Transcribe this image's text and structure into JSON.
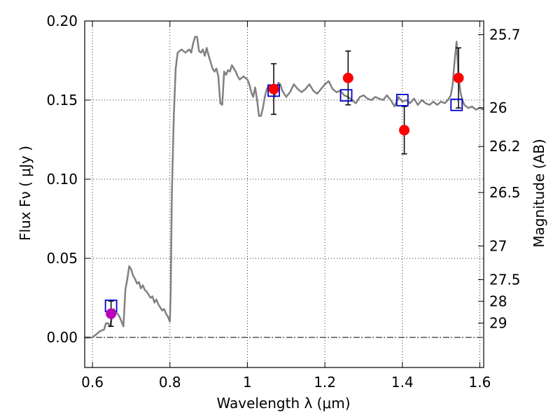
{
  "chart_data": {
    "type": "scatter",
    "xlabel": "Wavelength  λ (μm)",
    "ylabel": "Flux  Fν  ( μJy )",
    "y2label": "Magnitude (AB)",
    "xlim": [
      0.58,
      1.61
    ],
    "ylim": [
      -0.019,
      0.2
    ],
    "xticks": [
      0.6,
      0.8,
      1.0,
      1.2,
      1.4,
      1.6
    ],
    "xtick_labels": [
      "0.6",
      "0.8",
      "1",
      "1.2",
      "1.4",
      "1.6"
    ],
    "yticks": [
      0.0,
      0.05,
      0.1,
      0.15,
      0.2
    ],
    "ytick_labels": [
      "0.00",
      "0.05",
      "0.10",
      "0.15",
      "0.20"
    ],
    "y2ticks": [
      {
        "label": "25.7",
        "flux": 0.1914
      },
      {
        "label": "26",
        "flux": 0.1452
      },
      {
        "label": "26.2",
        "flux": 0.1207
      },
      {
        "label": "26.5",
        "flux": 0.0916
      },
      {
        "label": "27",
        "flux": 0.0578
      },
      {
        "label": "27.5",
        "flux": 0.0365
      },
      {
        "label": "28",
        "flux": 0.0229
      },
      {
        "label": "29",
        "flux": 0.0091
      }
    ],
    "grid": true,
    "zero_line": true,
    "colors": {
      "model": "#808080",
      "observed": "#ff0000",
      "observed_optical": "#bb00bb",
      "synthetic": "#0000cc",
      "errorbar": "#000000"
    },
    "model_spectrum": [
      [
        0.58,
        0.0
      ],
      [
        0.6,
        0.0
      ],
      [
        0.61,
        0.002
      ],
      [
        0.62,
        0.004
      ],
      [
        0.63,
        0.005
      ],
      [
        0.635,
        0.009
      ],
      [
        0.64,
        0.009
      ],
      [
        0.645,
        0.007
      ],
      [
        0.65,
        0.012
      ],
      [
        0.655,
        0.018
      ],
      [
        0.66,
        0.016
      ],
      [
        0.665,
        0.015
      ],
      [
        0.67,
        0.013
      ],
      [
        0.675,
        0.01
      ],
      [
        0.68,
        0.007
      ],
      [
        0.682,
        0.016
      ],
      [
        0.685,
        0.03
      ],
      [
        0.69,
        0.037
      ],
      [
        0.695,
        0.045
      ],
      [
        0.7,
        0.043
      ],
      [
        0.705,
        0.039
      ],
      [
        0.71,
        0.037
      ],
      [
        0.715,
        0.034
      ],
      [
        0.72,
        0.035
      ],
      [
        0.725,
        0.031
      ],
      [
        0.73,
        0.033
      ],
      [
        0.735,
        0.03
      ],
      [
        0.74,
        0.029
      ],
      [
        0.745,
        0.027
      ],
      [
        0.75,
        0.025
      ],
      [
        0.755,
        0.026
      ],
      [
        0.76,
        0.022
      ],
      [
        0.765,
        0.024
      ],
      [
        0.77,
        0.021
      ],
      [
        0.775,
        0.019
      ],
      [
        0.78,
        0.017
      ],
      [
        0.785,
        0.018
      ],
      [
        0.79,
        0.015
      ],
      [
        0.795,
        0.013
      ],
      [
        0.8,
        0.01
      ],
      [
        0.802,
        0.03
      ],
      [
        0.805,
        0.09
      ],
      [
        0.81,
        0.14
      ],
      [
        0.815,
        0.17
      ],
      [
        0.82,
        0.18
      ],
      [
        0.83,
        0.182
      ],
      [
        0.84,
        0.18
      ],
      [
        0.845,
        0.181
      ],
      [
        0.85,
        0.182
      ],
      [
        0.855,
        0.18
      ],
      [
        0.86,
        0.186
      ],
      [
        0.865,
        0.19
      ],
      [
        0.87,
        0.19
      ],
      [
        0.875,
        0.181
      ],
      [
        0.88,
        0.18
      ],
      [
        0.885,
        0.182
      ],
      [
        0.89,
        0.178
      ],
      [
        0.895,
        0.183
      ],
      [
        0.9,
        0.178
      ],
      [
        0.905,
        0.174
      ],
      [
        0.91,
        0.17
      ],
      [
        0.915,
        0.168
      ],
      [
        0.92,
        0.17
      ],
      [
        0.925,
        0.165
      ],
      [
        0.93,
        0.148
      ],
      [
        0.935,
        0.147
      ],
      [
        0.94,
        0.168
      ],
      [
        0.945,
        0.166
      ],
      [
        0.95,
        0.169
      ],
      [
        0.955,
        0.168
      ],
      [
        0.96,
        0.172
      ],
      [
        0.965,
        0.17
      ],
      [
        0.97,
        0.168
      ],
      [
        0.975,
        0.165
      ],
      [
        0.98,
        0.163
      ],
      [
        0.985,
        0.164
      ],
      [
        0.99,
        0.165
      ],
      [
        0.995,
        0.164
      ],
      [
        1.0,
        0.163
      ],
      [
        1.005,
        0.16
      ],
      [
        1.01,
        0.155
      ],
      [
        1.015,
        0.152
      ],
      [
        1.02,
        0.158
      ],
      [
        1.025,
        0.15
      ],
      [
        1.03,
        0.14
      ],
      [
        1.035,
        0.14
      ],
      [
        1.04,
        0.145
      ],
      [
        1.045,
        0.152
      ],
      [
        1.05,
        0.157
      ],
      [
        1.055,
        0.159
      ],
      [
        1.06,
        0.155
      ],
      [
        1.065,
        0.158
      ],
      [
        1.07,
        0.152
      ],
      [
        1.075,
        0.157
      ],
      [
        1.08,
        0.161
      ],
      [
        1.085,
        0.16
      ],
      [
        1.09,
        0.156
      ],
      [
        1.1,
        0.152
      ],
      [
        1.11,
        0.155
      ],
      [
        1.12,
        0.16
      ],
      [
        1.13,
        0.157
      ],
      [
        1.14,
        0.155
      ],
      [
        1.15,
        0.157
      ],
      [
        1.16,
        0.16
      ],
      [
        1.17,
        0.156
      ],
      [
        1.18,
        0.154
      ],
      [
        1.19,
        0.157
      ],
      [
        1.2,
        0.16
      ],
      [
        1.21,
        0.162
      ],
      [
        1.22,
        0.157
      ],
      [
        1.23,
        0.155
      ],
      [
        1.24,
        0.156
      ],
      [
        1.25,
        0.153
      ],
      [
        1.26,
        0.152
      ],
      [
        1.27,
        0.15
      ],
      [
        1.28,
        0.148
      ],
      [
        1.29,
        0.152
      ],
      [
        1.3,
        0.153
      ],
      [
        1.31,
        0.151
      ],
      [
        1.32,
        0.15
      ],
      [
        1.33,
        0.152
      ],
      [
        1.34,
        0.151
      ],
      [
        1.35,
        0.15
      ],
      [
        1.36,
        0.153
      ],
      [
        1.37,
        0.15
      ],
      [
        1.38,
        0.146
      ],
      [
        1.39,
        0.152
      ],
      [
        1.4,
        0.149
      ],
      [
        1.41,
        0.15
      ],
      [
        1.42,
        0.148
      ],
      [
        1.43,
        0.151
      ],
      [
        1.44,
        0.147
      ],
      [
        1.45,
        0.15
      ],
      [
        1.46,
        0.148
      ],
      [
        1.47,
        0.147
      ],
      [
        1.48,
        0.149
      ],
      [
        1.49,
        0.147
      ],
      [
        1.5,
        0.149
      ],
      [
        1.51,
        0.148
      ],
      [
        1.52,
        0.151
      ],
      [
        1.525,
        0.153
      ],
      [
        1.53,
        0.16
      ],
      [
        1.535,
        0.175
      ],
      [
        1.54,
        0.187
      ],
      [
        1.545,
        0.165
      ],
      [
        1.55,
        0.155
      ],
      [
        1.555,
        0.15
      ],
      [
        1.56,
        0.147
      ],
      [
        1.57,
        0.145
      ],
      [
        1.58,
        0.146
      ],
      [
        1.59,
        0.144
      ],
      [
        1.6,
        0.145
      ],
      [
        1.61,
        0.144
      ]
    ],
    "observed": [
      {
        "x": 0.648,
        "y": 0.015,
        "err": 0.008,
        "color": "#bb00bb"
      },
      {
        "x": 1.068,
        "y": 0.157,
        "err": 0.016,
        "color": "#ff0000"
      },
      {
        "x": 1.26,
        "y": 0.164,
        "err": 0.017,
        "color": "#ff0000"
      },
      {
        "x": 1.405,
        "y": 0.131,
        "err": 0.015,
        "color": "#ff0000"
      },
      {
        "x": 1.545,
        "y": 0.164,
        "err": 0.019,
        "color": "#ff0000"
      }
    ],
    "synthetic": [
      {
        "x": 0.648,
        "y": 0.02
      },
      {
        "x": 1.068,
        "y": 0.156
      },
      {
        "x": 1.255,
        "y": 0.153
      },
      {
        "x": 1.4,
        "y": 0.15
      },
      {
        "x": 1.54,
        "y": 0.147
      }
    ]
  }
}
